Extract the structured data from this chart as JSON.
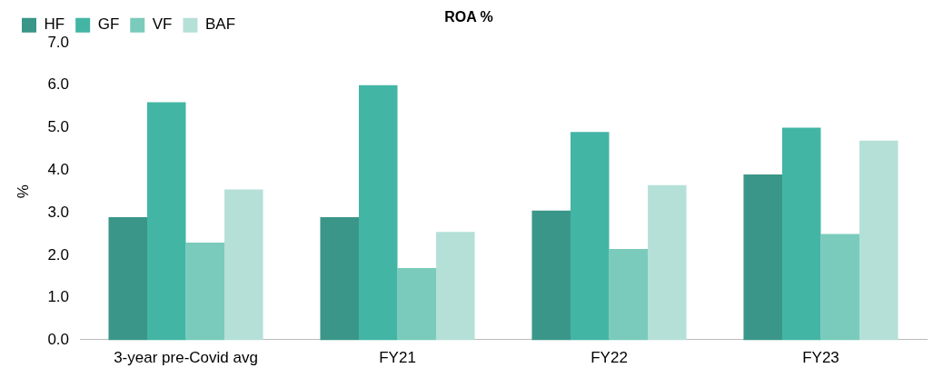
{
  "chart_data": {
    "type": "bar",
    "title": "ROA %",
    "ylabel": "%",
    "categories": [
      "3-year pre-Covid avg",
      "FY21",
      "FY22",
      "FY23"
    ],
    "series": [
      {
        "name": "HF",
        "color": "#3a9688",
        "values": [
          2.9,
          2.9,
          3.05,
          3.9
        ]
      },
      {
        "name": "GF",
        "color": "#43b5a5",
        "values": [
          5.6,
          6.0,
          4.9,
          5.0
        ]
      },
      {
        "name": "VF",
        "color": "#7acbbb",
        "values": [
          2.3,
          1.7,
          2.15,
          2.5
        ]
      },
      {
        "name": "BAF",
        "color": "#b5e0d8",
        "values": [
          3.55,
          2.55,
          3.65,
          4.7
        ]
      }
    ],
    "ylim": [
      0,
      7
    ],
    "yticks": [
      {
        "value": 0,
        "label": "0.0"
      },
      {
        "value": 1,
        "label": "1.0"
      },
      {
        "value": 2,
        "label": "2.0"
      },
      {
        "value": 3,
        "label": "3.0"
      },
      {
        "value": 4,
        "label": "4.0"
      },
      {
        "value": 5,
        "label": "5.0"
      },
      {
        "value": 6,
        "label": "6.0"
      },
      {
        "value": 7,
        "label": "7.0"
      }
    ],
    "grid": false,
    "legend": "top left"
  }
}
